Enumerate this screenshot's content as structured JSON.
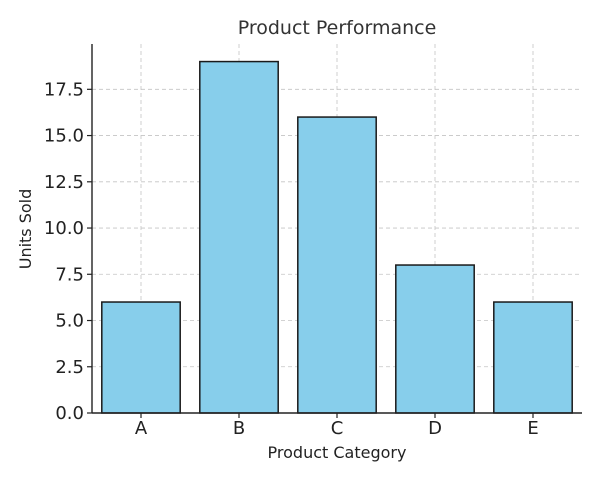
{
  "chart_data": {
    "type": "bar",
    "title": "Product Performance",
    "xlabel": "Product Category",
    "ylabel": "Units Sold",
    "categories": [
      "A",
      "B",
      "C",
      "D",
      "E"
    ],
    "values": [
      6,
      19,
      16,
      8,
      6
    ],
    "ylim": [
      0,
      19.95
    ],
    "yticks": [
      0,
      2.5,
      5,
      7.5,
      10,
      12.5,
      15,
      17.5
    ],
    "ytick_labels": [
      "0.0",
      "2.5",
      "5.0",
      "7.5",
      "10.0",
      "12.5",
      "15.0",
      "17.5"
    ],
    "grid": true,
    "bar_color": "#87CEEB",
    "edge_color": "#1a1a1a"
  }
}
